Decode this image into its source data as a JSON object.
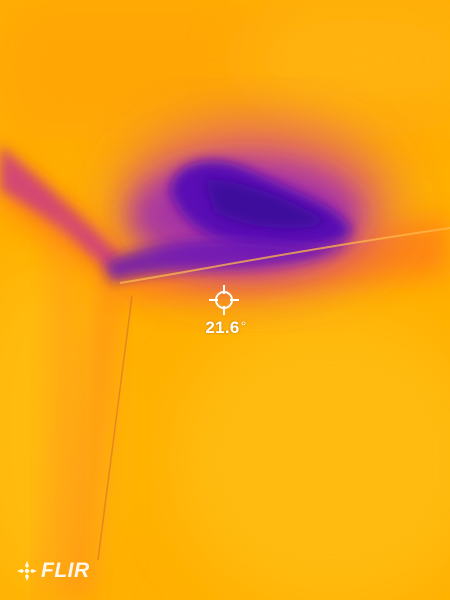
{
  "thermal_image": {
    "palette": "iron",
    "colors": {
      "background": "#ffb000",
      "warm": "#ffc20a",
      "mid": "#ff7a1a",
      "cool": "#c8368c",
      "cold": "#5a10b4",
      "coldest": "#3a0a9a"
    }
  },
  "spot_measurement": {
    "icon": "crosshair-icon",
    "value": "21.6",
    "unit": "°"
  },
  "branding": {
    "icon": "flir-logo-icon",
    "label": "FLIR"
  }
}
